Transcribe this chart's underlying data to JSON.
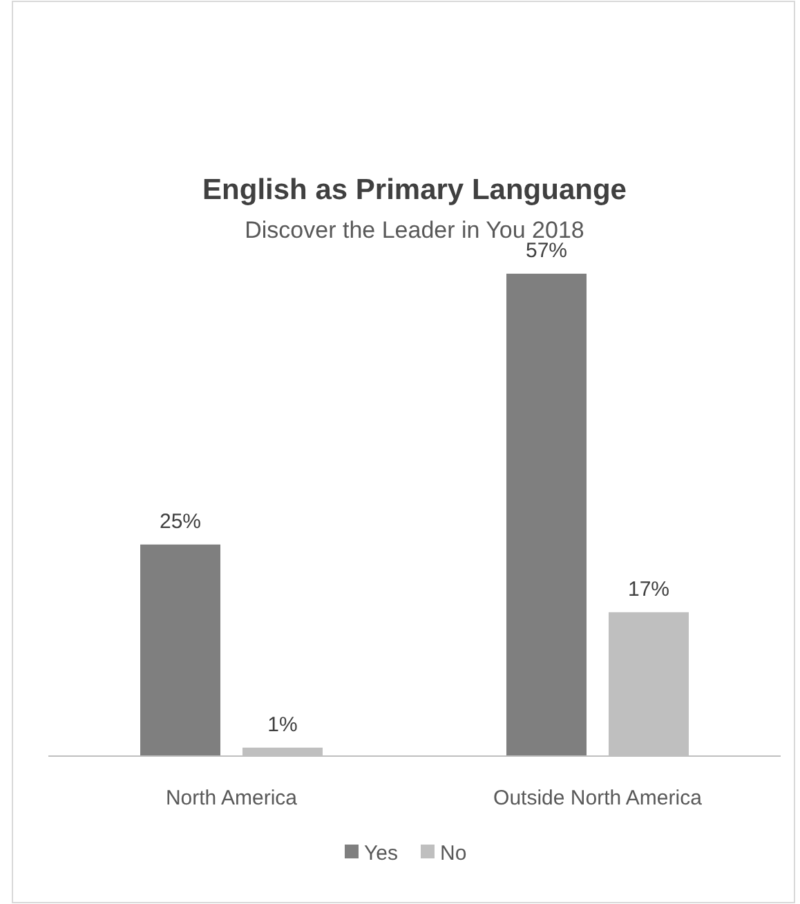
{
  "chart_data": {
    "type": "bar",
    "title": "English as Primary Languange",
    "subtitle": "Discover the Leader in You 2018",
    "categories": [
      "North America",
      "Outside North America"
    ],
    "series": [
      {
        "name": "Yes",
        "color": "#7f7f7f",
        "values": [
          25,
          57
        ],
        "value_labels": [
          "25%",
          "57%"
        ]
      },
      {
        "name": "No",
        "color": "#bfbfbf",
        "values": [
          1,
          17
        ],
        "value_labels": [
          "1%",
          "17%"
        ]
      }
    ],
    "legend": "bottom",
    "grid": false
  }
}
